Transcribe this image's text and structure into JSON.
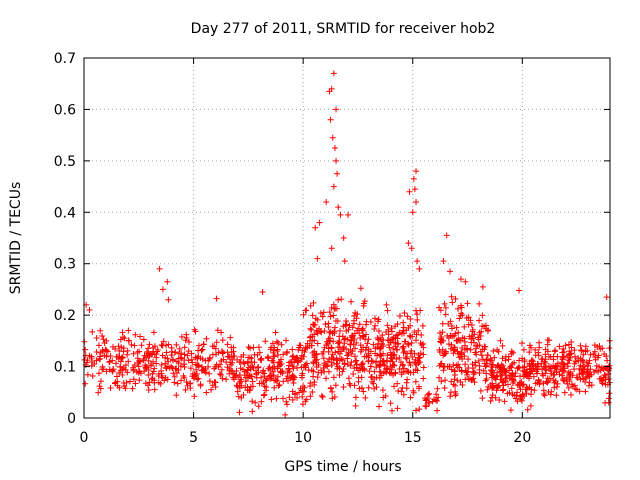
{
  "chart_data": {
    "type": "scatter",
    "title": "Day 277 of 2011, SRMTID for receiver hob2",
    "xlabel": "GPS time / hours",
    "ylabel": "SRMTID / TECUs",
    "xlim": [
      0,
      24
    ],
    "ylim": [
      0,
      0.7
    ],
    "xticks": [
      0,
      5,
      10,
      15,
      20
    ],
    "yticks": [
      0,
      0.1,
      0.2,
      0.3,
      0.4,
      0.5,
      0.6,
      0.7
    ],
    "xtick_labels": [
      "0",
      "5",
      "10",
      "15",
      "20"
    ],
    "ytick_labels": [
      "0",
      "0.1",
      "0.2",
      "0.3",
      "0.4",
      "0.5",
      "0.6",
      "0.7"
    ],
    "grid": true,
    "legend": "none",
    "marker": "plus",
    "color": "#ff0000",
    "note": "Dense scatter of ~2000 points; the highlighted points below are the distinct features readable from the image. Background density is described by the baseline segments (hour range, low/high TECU band, approx. points).",
    "points": [
      {
        "x": 11.4,
        "y": 0.67
      },
      {
        "x": 11.3,
        "y": 0.64
      },
      {
        "x": 11.2,
        "y": 0.635
      },
      {
        "x": 11.5,
        "y": 0.6
      },
      {
        "x": 11.25,
        "y": 0.58
      },
      {
        "x": 11.35,
        "y": 0.545
      },
      {
        "x": 11.45,
        "y": 0.525
      },
      {
        "x": 11.5,
        "y": 0.5
      },
      {
        "x": 11.55,
        "y": 0.475
      },
      {
        "x": 11.4,
        "y": 0.45
      },
      {
        "x": 11.05,
        "y": 0.42
      },
      {
        "x": 11.6,
        "y": 0.41
      },
      {
        "x": 11.7,
        "y": 0.395
      },
      {
        "x": 12.05,
        "y": 0.395
      },
      {
        "x": 10.75,
        "y": 0.38
      },
      {
        "x": 10.55,
        "y": 0.37
      },
      {
        "x": 11.85,
        "y": 0.35
      },
      {
        "x": 11.3,
        "y": 0.33
      },
      {
        "x": 10.65,
        "y": 0.31
      },
      {
        "x": 11.9,
        "y": 0.305
      },
      {
        "x": 15.15,
        "y": 0.48
      },
      {
        "x": 15.05,
        "y": 0.465
      },
      {
        "x": 15.1,
        "y": 0.445
      },
      {
        "x": 14.85,
        "y": 0.44
      },
      {
        "x": 15.15,
        "y": 0.42
      },
      {
        "x": 15.0,
        "y": 0.4
      },
      {
        "x": 14.8,
        "y": 0.34
      },
      {
        "x": 14.95,
        "y": 0.33
      },
      {
        "x": 15.2,
        "y": 0.305
      },
      {
        "x": 15.3,
        "y": 0.29
      },
      {
        "x": 16.55,
        "y": 0.355
      },
      {
        "x": 16.4,
        "y": 0.305
      },
      {
        "x": 16.7,
        "y": 0.285
      },
      {
        "x": 17.2,
        "y": 0.27
      },
      {
        "x": 17.4,
        "y": 0.265
      },
      {
        "x": 18.2,
        "y": 0.255
      },
      {
        "x": 3.45,
        "y": 0.29
      },
      {
        "x": 3.8,
        "y": 0.265
      },
      {
        "x": 3.6,
        "y": 0.25
      },
      {
        "x": 3.85,
        "y": 0.23
      },
      {
        "x": 6.05,
        "y": 0.232
      },
      {
        "x": 8.15,
        "y": 0.245
      },
      {
        "x": 19.85,
        "y": 0.248
      },
      {
        "x": 23.85,
        "y": 0.235
      },
      {
        "x": 0.1,
        "y": 0.22
      },
      {
        "x": 0.25,
        "y": 0.21
      },
      {
        "x": 1.85,
        "y": 0.155
      },
      {
        "x": 13.8,
        "y": 0.22
      }
    ],
    "baseline_segments": [
      {
        "x_range": [
          0,
          3
        ],
        "y_range": [
          0.03,
          0.2
        ],
        "count": 150
      },
      {
        "x_range": [
          3,
          7
        ],
        "y_range": [
          0.02,
          0.19
        ],
        "count": 220
      },
      {
        "x_range": [
          7,
          10
        ],
        "y_range": [
          0.0,
          0.18
        ],
        "count": 220
      },
      {
        "x_range": [
          10,
          13
        ],
        "y_range": [
          0.0,
          0.27
        ],
        "count": 280
      },
      {
        "x_range": [
          13,
          15.5
        ],
        "y_range": [
          0.0,
          0.24
        ],
        "count": 230
      },
      {
        "x_range": [
          15.5,
          16.2
        ],
        "y_range": [
          0.0,
          0.08
        ],
        "count": 20
      },
      {
        "x_range": [
          16.2,
          18.5
        ],
        "y_range": [
          0.0,
          0.26
        ],
        "count": 200
      },
      {
        "x_range": [
          18.5,
          20.5
        ],
        "y_range": [
          0.0,
          0.17
        ],
        "count": 180
      },
      {
        "x_range": [
          20.5,
          24
        ],
        "y_range": [
          0.02,
          0.17
        ],
        "count": 260
      }
    ]
  }
}
